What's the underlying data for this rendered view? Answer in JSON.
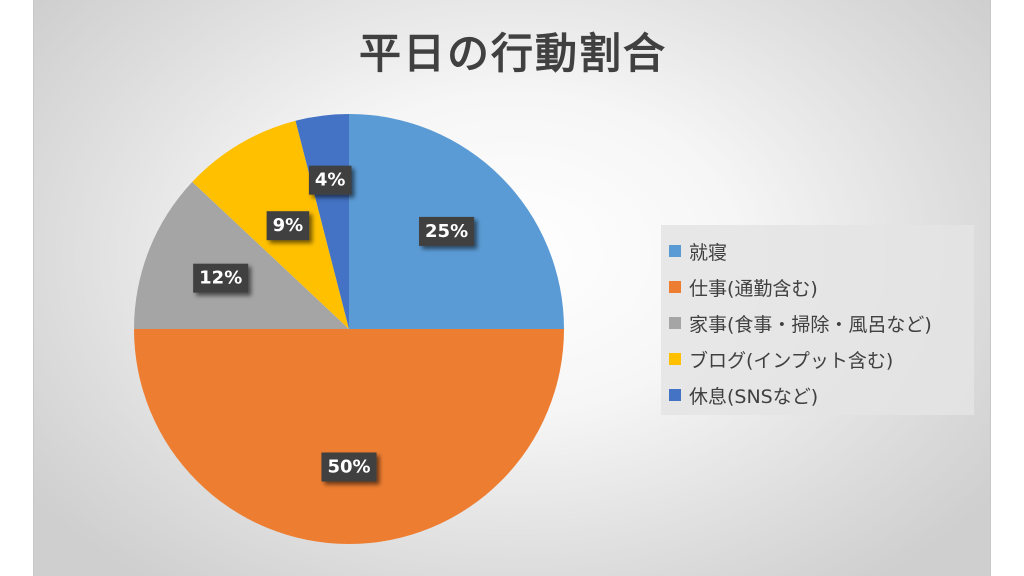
{
  "chart_data": {
    "type": "pie",
    "title": "平日の行動割合",
    "start_angle_deg": 0,
    "direction": "clockwise",
    "legend_position": "right",
    "slices": [
      {
        "label": "就寝",
        "value": 25,
        "display": "25%",
        "color": "#5b9bd5"
      },
      {
        "label": "仕事(通勤含む)",
        "value": 50,
        "display": "50%",
        "color": "#ed7d31"
      },
      {
        "label": "家事(食事・掃除・風呂など)",
        "value": 12,
        "display": "12%",
        "color": "#a5a5a5"
      },
      {
        "label": "ブログ(インプット含む)",
        "value": 9,
        "display": "9%",
        "color": "#ffc000"
      },
      {
        "label": "休息(SNSなど)",
        "value": 4,
        "display": "4%",
        "color": "#4472c4"
      }
    ]
  }
}
